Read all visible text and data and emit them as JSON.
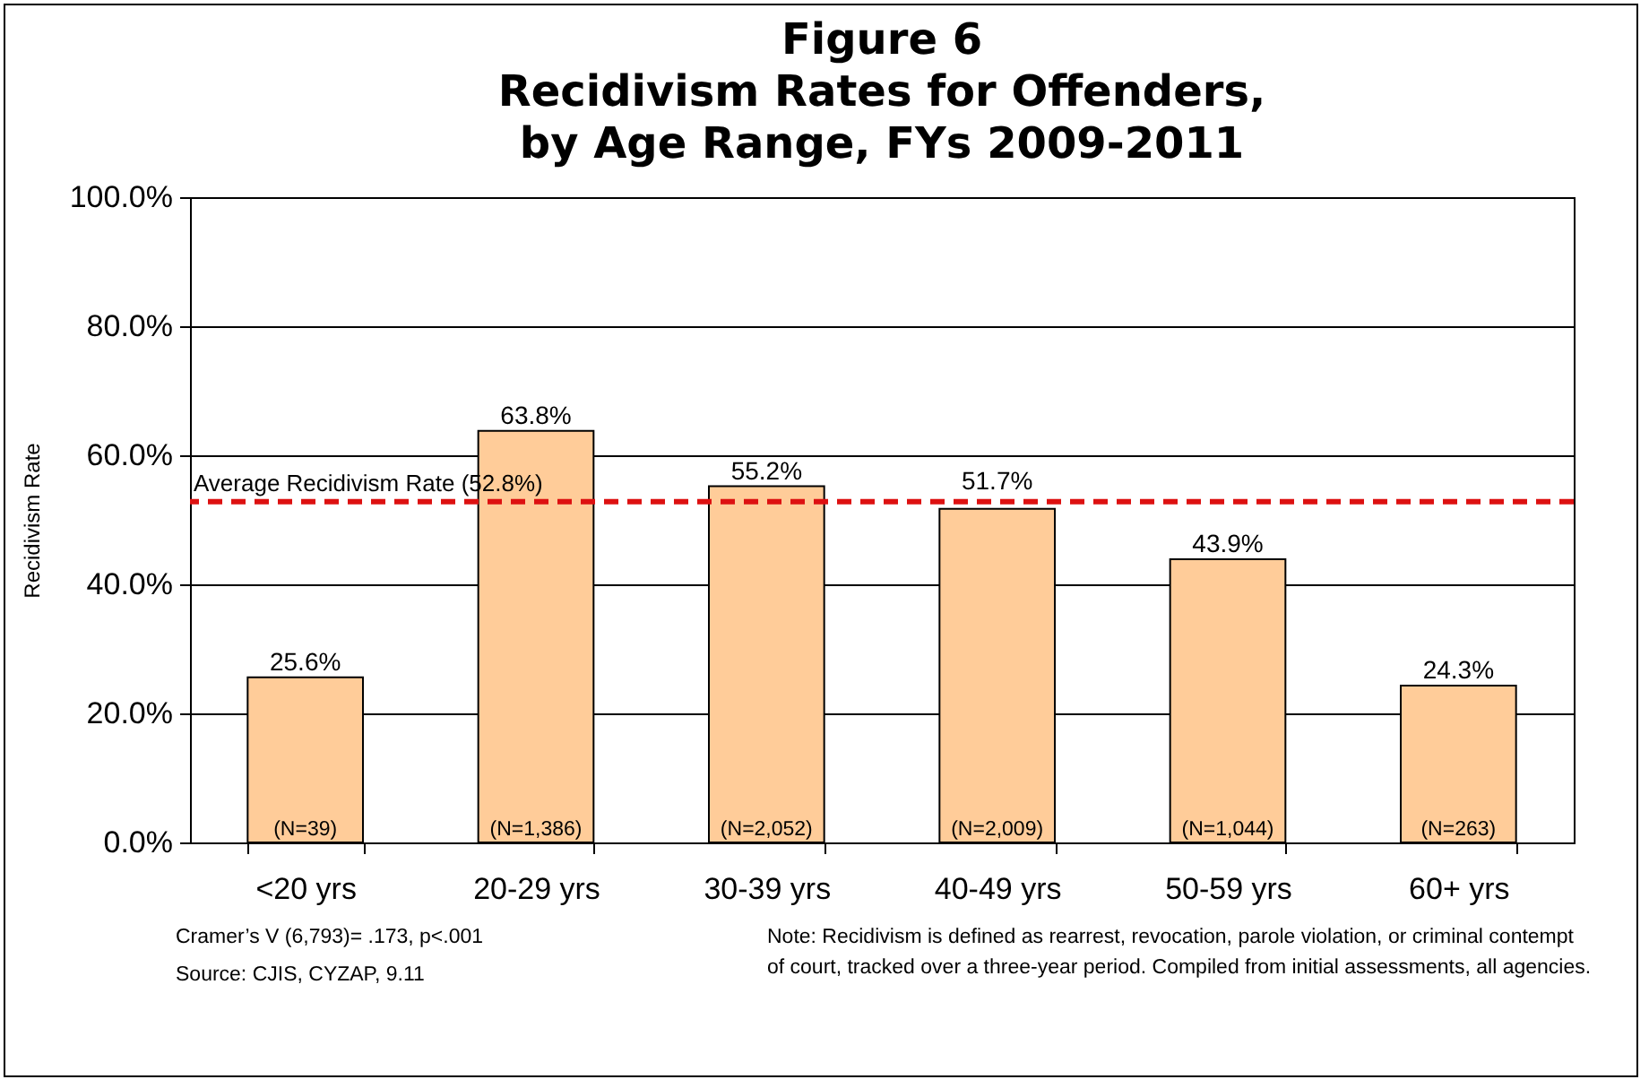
{
  "chart_data": {
    "type": "bar",
    "title": "Figure 6\nRecidivism Rates for Offenders,\nby Age Range, FYs 2009-2011",
    "ylabel": "Recidivism Rate",
    "categories": [
      "<20 yrs",
      "20-29 yrs",
      "30-39 yrs",
      "40-49 yrs",
      "50-59 yrs",
      "60+ yrs"
    ],
    "values": [
      25.6,
      63.8,
      55.2,
      51.7,
      43.9,
      24.3
    ],
    "value_labels": [
      "25.6%",
      "63.8%",
      "55.2%",
      "51.7%",
      "43.9%",
      "24.3%"
    ],
    "color": "#ffcc99",
    "ylim": [
      0,
      100
    ],
    "yticks": [
      {
        "value": 0,
        "label": "0.0%"
      },
      {
        "value": 20,
        "label": "20.0%"
      },
      {
        "value": 40,
        "label": "40.0%"
      },
      {
        "value": 60,
        "label": "60.0%"
      },
      {
        "value": 80,
        "label": "80.0%"
      },
      {
        "value": 100,
        "label": "100.0%"
      }
    ],
    "grid": "y",
    "ref_lines": [
      {
        "axis": "y",
        "value": 52.8,
        "label": "Average Recidivism Rate (52.8%)",
        "color": "#dd1111",
        "line_style": "dashed"
      }
    ],
    "annotations": [
      {
        "text": "(N=39)",
        "x": "<20 yrs",
        "y": 0
      },
      {
        "text": "(N=1,386)",
        "x": "20-29 yrs",
        "y": 0
      },
      {
        "text": "(N=2,052)",
        "x": "30-39 yrs",
        "y": 0
      },
      {
        "text": "(N=2,009)",
        "x": "40-49 yrs",
        "y": 0
      },
      {
        "text": "(N=1,044)",
        "x": "50-59 yrs",
        "y": 0
      },
      {
        "text": "(N=263)",
        "x": "60+ yrs",
        "y": 0
      },
      "Cramer’s V (6,793)= .173, p<.001",
      "Source: CJIS, CYZAP, 9.11",
      "Note: Recidivism is defined as rearrest, revocation, parole violation, or criminal contempt of court, tracked over a three-year period. Compiled from initial assessments, all agencies."
    ]
  }
}
